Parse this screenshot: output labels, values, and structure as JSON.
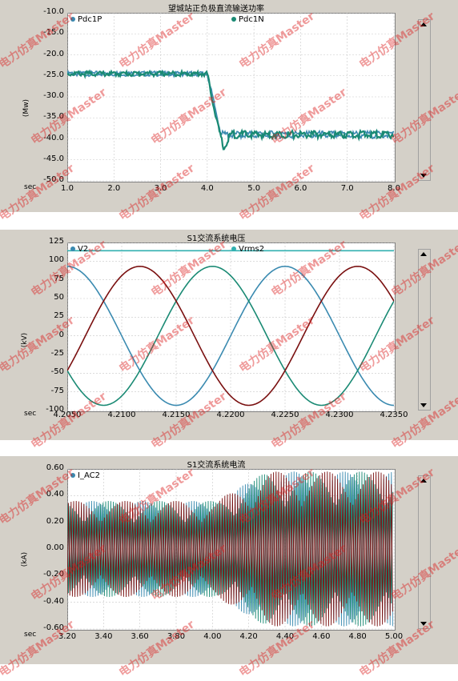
{
  "watermark": "电力仿真Master",
  "colors": {
    "teal": "#1a8a74",
    "blue": "#3a8ab0",
    "red": "#7a1010",
    "cyan": "#30b0b0",
    "panel": "#d4d0c8"
  },
  "chart_data": [
    {
      "type": "line",
      "title": "望城站正负极直流输送功率",
      "ylabel": "(Mw)",
      "xlabel_prefix": "sec",
      "xlim": [
        1.0,
        8.0
      ],
      "ylim": [
        -50.0,
        -10.0
      ],
      "yticks": [
        "-10.0",
        "-15.0",
        "-20.0",
        "-25.0",
        "-30.0",
        "-35.0",
        "-40.0",
        "-45.0",
        "-50.0"
      ],
      "xticks": [
        "1.0",
        "2.0",
        "3.0",
        "4.0",
        "5.0",
        "6.0",
        "7.0",
        "8.0"
      ],
      "series": [
        {
          "name": "Pdc1P",
          "color": "#3a8ab0",
          "x": [
            1.0,
            4.0,
            4.3,
            4.5,
            8.0
          ],
          "y": [
            -24.5,
            -24.5,
            -39.0,
            -39.0,
            -39.0
          ]
        },
        {
          "name": "Pdc1N",
          "color": "#1a8a74",
          "x": [
            1.0,
            4.0,
            4.15,
            4.35,
            4.5,
            8.0
          ],
          "y": [
            -24.5,
            -24.5,
            -33.0,
            -42.5,
            -39.0,
            -39.0
          ]
        }
      ]
    },
    {
      "type": "line",
      "title": "S1交流系统电压",
      "ylabel": "(kV)",
      "xlabel_prefix": "sec",
      "xlim": [
        4.205,
        4.235
      ],
      "ylim": [
        -100,
        125
      ],
      "yticks": [
        "125",
        "100",
        "75",
        "50",
        "25",
        "0",
        "-25",
        "-50",
        "-75",
        "-100"
      ],
      "xticks": [
        "4.2050",
        "4.2100",
        "4.2150",
        "4.2200",
        "4.2250",
        "4.2300",
        "4.2350"
      ],
      "series": [
        {
          "name": "V2",
          "amplitude": 93,
          "phases_deg": [
            90,
            210,
            330
          ],
          "colors": [
            "#3a8ab0",
            "#1a8a74",
            "#7a1010"
          ],
          "freq_hz": 50
        },
        {
          "name": "Vrms2",
          "value": 114,
          "color": "#30b0b0"
        }
      ]
    },
    {
      "type": "line",
      "title": "S1交流系统电流",
      "ylabel": "(kA)",
      "xlabel_prefix": "sec",
      "xlim": [
        3.2,
        5.0
      ],
      "ylim": [
        -0.6,
        0.6
      ],
      "yticks": [
        "0.60",
        "0.40",
        "0.20",
        "0.00",
        "-0.20",
        "-0.40",
        "-0.60"
      ],
      "xticks": [
        "3.20",
        "3.40",
        "3.60",
        "3.80",
        "4.00",
        "4.20",
        "4.40",
        "4.60",
        "4.80",
        "5.00"
      ],
      "series": [
        {
          "name": "I_AC2",
          "envelope_x": [
            3.2,
            4.02,
            4.3,
            5.0
          ],
          "envelope_y": [
            0.36,
            0.36,
            0.58,
            0.58
          ],
          "colors": [
            "#3a8ab0",
            "#1a8a74",
            "#7a1010"
          ]
        }
      ]
    }
  ]
}
